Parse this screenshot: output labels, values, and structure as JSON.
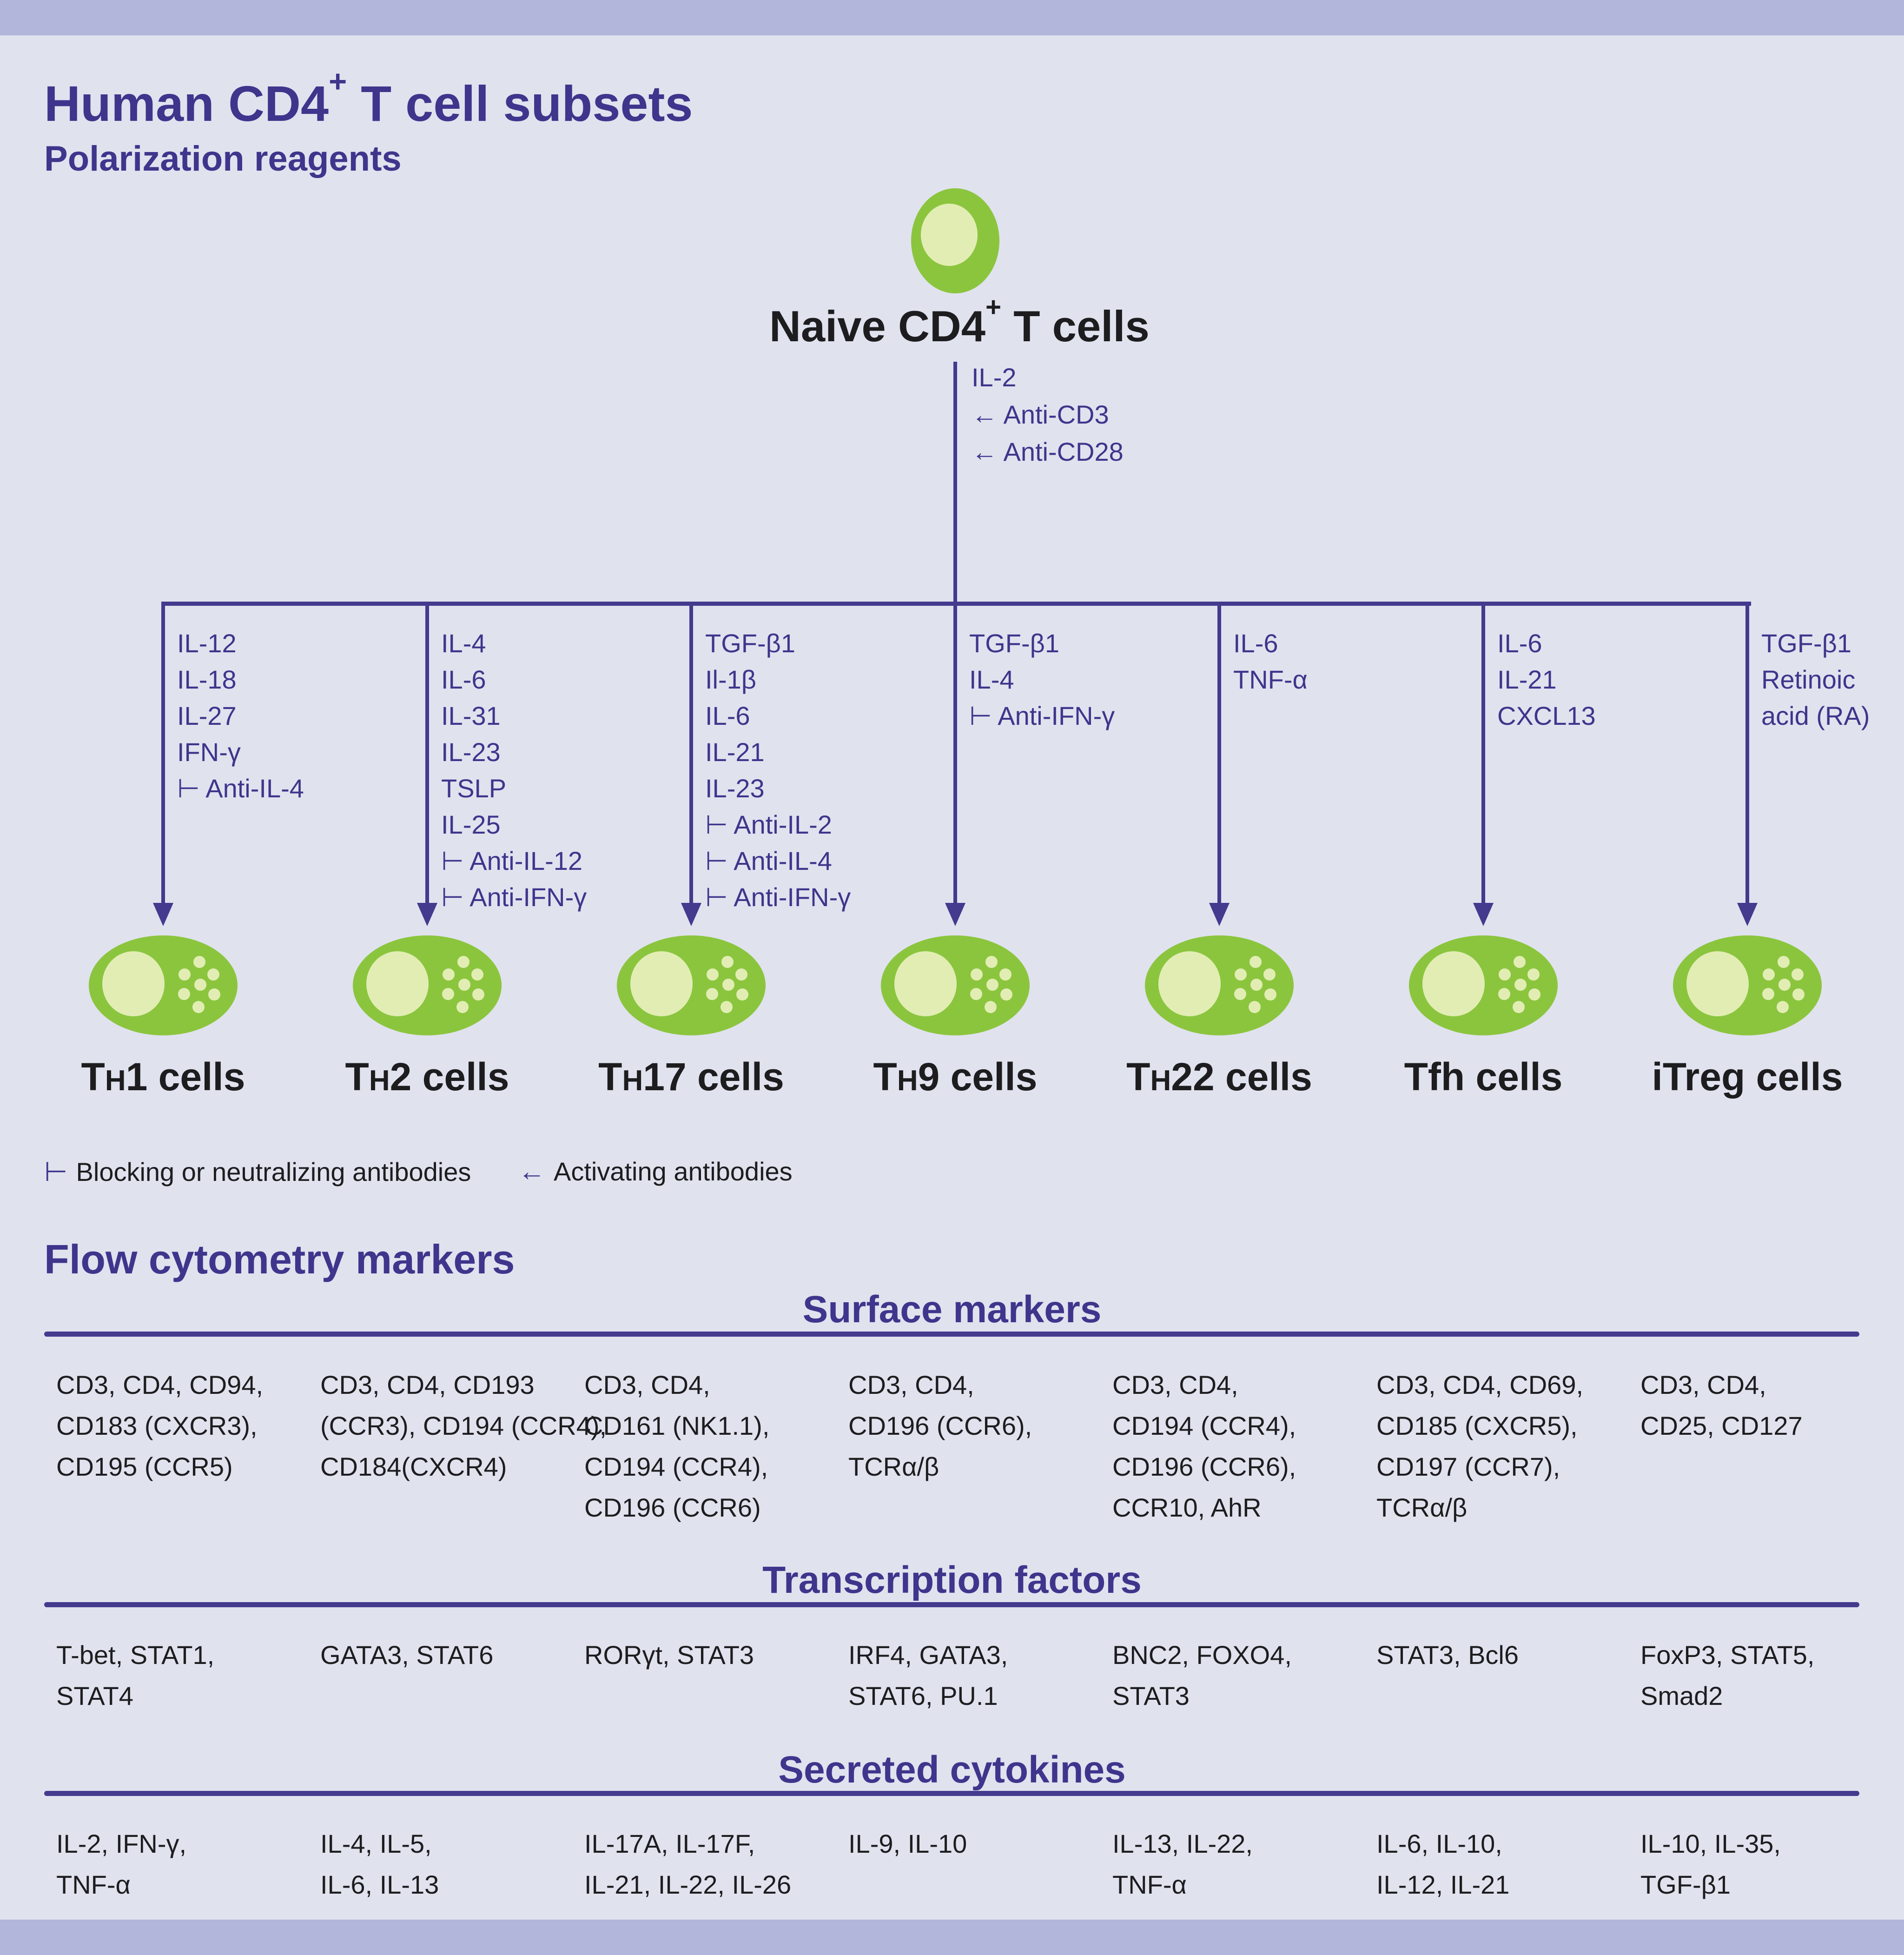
{
  "title": {
    "pre": "Human CD4",
    "sup": "+",
    "post": " T cell subsets"
  },
  "subtitle": "Polarization reagents",
  "naive": {
    "label_pre": "Naive CD4",
    "label_sup": "+",
    "label_post": " T cells",
    "stem_reagents": [
      "IL-2",
      "← Anti-CD3",
      "← Anti-CD28"
    ]
  },
  "legend": [
    {
      "glyph": "⊢",
      "label": "Blocking or neutralizing antibodies"
    },
    {
      "glyph": "←",
      "label": "Activating antibodies"
    }
  ],
  "flow_section": {
    "heading": "Flow cytometry markers",
    "subsections": [
      "Surface markers",
      "Transcription factors",
      "Secreted cytokines"
    ]
  },
  "columns": [
    {
      "id": "th1",
      "label": {
        "pre": "T",
        "small": "H",
        "post": "1 cells"
      },
      "reagents": [
        "IL-12",
        "IL-18",
        "IL-27",
        "IFN-γ",
        "⊢ Anti-IL-4"
      ],
      "surface": [
        "CD3, CD4, CD94,",
        "CD183 (CXCR3),",
        "CD195 (CCR5)"
      ],
      "transcription": [
        "T-bet, STAT1,",
        "STAT4"
      ],
      "secreted": [
        "IL-2, IFN-γ,",
        "TNF-α"
      ]
    },
    {
      "id": "th2",
      "label": {
        "pre": "T",
        "small": "H",
        "post": "2 cells"
      },
      "reagents": [
        "IL-4",
        "IL-6",
        "IL-31",
        "IL-23",
        "TSLP",
        "IL-25",
        "⊢ Anti-IL-12",
        "⊢ Anti-IFN-γ"
      ],
      "surface": [
        "CD3, CD4, CD193",
        "(CCR3), CD194 (CCR4),",
        "CD184(CXCR4)"
      ],
      "transcription": [
        "GATA3, STAT6"
      ],
      "secreted": [
        "IL-4, IL-5,",
        "IL-6, IL-13"
      ]
    },
    {
      "id": "th17",
      "label": {
        "pre": "T",
        "small": "H",
        "post": "17 cells"
      },
      "reagents": [
        "TGF-β1",
        "Il-1β",
        "IL-6",
        "IL-21",
        "IL-23",
        "⊢ Anti-IL-2",
        "⊢ Anti-IL-4",
        "⊢ Anti-IFN-γ"
      ],
      "surface": [
        "CD3, CD4,",
        "CD161 (NK1.1),",
        "CD194 (CCR4),",
        "CD196 (CCR6)"
      ],
      "transcription": [
        "RORγt, STAT3"
      ],
      "secreted": [
        "IL-17A, IL-17F,",
        "IL-21, IL-22, IL-26"
      ]
    },
    {
      "id": "th9",
      "label": {
        "pre": "T",
        "small": "H",
        "post": "9 cells"
      },
      "reagents": [
        "TGF-β1",
        "IL-4",
        "⊢ Anti-IFN-γ"
      ],
      "surface": [
        "CD3, CD4,",
        "CD196 (CCR6),",
        "TCRα/β"
      ],
      "transcription": [
        "IRF4, GATA3,",
        "STAT6, PU.1"
      ],
      "secreted": [
        "IL-9, IL-10"
      ]
    },
    {
      "id": "th22",
      "label": {
        "pre": "T",
        "small": "H",
        "post": "22 cells"
      },
      "reagents": [
        "IL-6",
        "TNF-α"
      ],
      "surface": [
        "CD3, CD4,",
        "CD194 (CCR4),",
        "CD196 (CCR6),",
        "CCR10, AhR"
      ],
      "transcription": [
        "BNC2, FOXO4,",
        "STAT3"
      ],
      "secreted": [
        "IL-13, IL-22,",
        "TNF-α"
      ]
    },
    {
      "id": "tfh",
      "label": {
        "pre": "Tfh cells",
        "small": "",
        "post": ""
      },
      "reagents": [
        "IL-6",
        "IL-21",
        "CXCL13"
      ],
      "surface": [
        "CD3, CD4, CD69,",
        "CD185 (CXCR5),",
        "CD197 (CCR7),",
        "TCRα/β"
      ],
      "transcription": [
        "STAT3, Bcl6"
      ],
      "secreted": [
        "IL-6, IL-10,",
        "IL-12, IL-21"
      ]
    },
    {
      "id": "itreg",
      "label": {
        "pre": "iTreg cells",
        "small": "",
        "post": ""
      },
      "reagents": [
        "TGF-β1",
        "Retinoic",
        "acid (RA)"
      ],
      "surface": [
        "CD3, CD4,",
        "CD25, CD127"
      ],
      "transcription": [
        "FoxP3, STAT5,",
        "Smad2"
      ],
      "secreted": [
        "IL-10, IL-35,",
        "TGF-β1"
      ]
    }
  ],
  "colors": {
    "background": "#e0e2ee",
    "band": "#b1b6da",
    "purple_text": "#3f358c",
    "purple_line": "#443a8e",
    "black_text": "#1d1d1f",
    "cell_green": "#8bc53e",
    "cell_green_light": "#e2edb4"
  }
}
